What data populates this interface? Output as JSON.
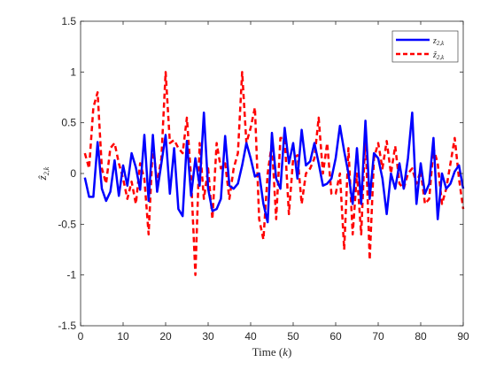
{
  "chart_data": {
    "type": "line",
    "xlabel": "Time (k)",
    "ylabel": "ẑ2,k",
    "xlim": [
      0,
      90
    ],
    "ylim": [
      -1.5,
      1.5
    ],
    "xticks": [
      0,
      10,
      20,
      30,
      40,
      50,
      60,
      70,
      80,
      90
    ],
    "yticks": [
      -1.5,
      -1,
      -0.5,
      0,
      0.5,
      1,
      1.5
    ],
    "xtick_labels": [
      "0",
      "10",
      "20",
      "30",
      "40",
      "50",
      "60",
      "70",
      "80",
      "90"
    ],
    "ytick_labels": [
      "-1.5",
      "-1",
      "-0.5",
      "0",
      "0.5",
      "1",
      "1.5"
    ],
    "legend_position": "top-right",
    "grid": false,
    "x": [
      1,
      2,
      3,
      4,
      5,
      6,
      7,
      8,
      9,
      10,
      11,
      12,
      13,
      14,
      15,
      16,
      17,
      18,
      19,
      20,
      21,
      22,
      23,
      24,
      25,
      26,
      27,
      28,
      29,
      30,
      31,
      32,
      33,
      34,
      35,
      36,
      37,
      38,
      39,
      40,
      41,
      42,
      43,
      44,
      45,
      46,
      47,
      48,
      49,
      50,
      51,
      52,
      53,
      54,
      55,
      56,
      57,
      58,
      59,
      60,
      61,
      62,
      63,
      64,
      65,
      66,
      67,
      68,
      69,
      70,
      71,
      72,
      73,
      74,
      75,
      76,
      77,
      78,
      79,
      80,
      81,
      82,
      83,
      84,
      85,
      86,
      87,
      88,
      89,
      90
    ],
    "series": [
      {
        "name": "z2,k",
        "color": "#0000FF",
        "style": "solid",
        "values": [
          -0.04,
          -0.23,
          -0.23,
          0.31,
          -0.15,
          -0.27,
          -0.18,
          0.13,
          -0.22,
          0.08,
          -0.12,
          0.2,
          0.06,
          -0.16,
          0.38,
          -0.27,
          0.38,
          -0.18,
          0.1,
          0.38,
          -0.2,
          0.25,
          -0.35,
          -0.42,
          0.32,
          -0.22,
          0.15,
          -0.12,
          0.6,
          -0.15,
          -0.37,
          -0.35,
          -0.25,
          0.37,
          -0.12,
          -0.15,
          -0.1,
          0.08,
          0.3,
          0.15,
          -0.03,
          0.0,
          -0.3,
          -0.48,
          0.4,
          -0.05,
          -0.15,
          0.45,
          0.1,
          0.3,
          -0.05,
          0.43,
          0.08,
          0.12,
          0.3,
          0.1,
          -0.12,
          -0.1,
          -0.05,
          0.15,
          0.47,
          0.22,
          0.0,
          -0.3,
          0.25,
          -0.3,
          0.52,
          -0.25,
          0.2,
          0.15,
          -0.05,
          -0.4,
          0.0,
          -0.15,
          0.1,
          -0.15,
          0.15,
          0.6,
          -0.3,
          0.1,
          -0.2,
          -0.1,
          0.35,
          -0.45,
          0.0,
          -0.15,
          -0.1,
          0.02,
          0.08,
          -0.15
        ]
      },
      {
        "name": "ẑ2,k",
        "color": "#FF0000",
        "style": "dashed",
        "values": [
          0.2,
          0.05,
          0.65,
          0.8,
          0.05,
          -0.1,
          0.25,
          0.3,
          0.1,
          -0.05,
          -0.25,
          -0.08,
          -0.3,
          0.1,
          -0.05,
          -0.6,
          0.3,
          -0.1,
          0.15,
          1.0,
          0.3,
          0.33,
          0.25,
          0.2,
          0.55,
          -0.05,
          -1.0,
          0.3,
          -0.25,
          0.05,
          -0.45,
          0.3,
          0.05,
          0.1,
          -0.25,
          0.05,
          0.2,
          1.0,
          0.3,
          0.45,
          0.65,
          -0.45,
          -0.65,
          0.0,
          0.3,
          -0.45,
          0.35,
          0.35,
          -0.4,
          0.15,
          0.18,
          -0.3,
          0.0,
          0.05,
          0.15,
          0.55,
          0.0,
          0.3,
          -0.2,
          -0.2,
          0.0,
          -0.75,
          0.25,
          -0.6,
          0.0,
          -0.6,
          0.4,
          -0.85,
          0.15,
          0.3,
          0.05,
          0.32,
          0.0,
          0.27,
          -0.1,
          -0.15,
          0.0,
          0.05,
          -0.1,
          0.03,
          -0.3,
          -0.25,
          0.25,
          0.1,
          -0.3,
          -0.15,
          0.1,
          0.35,
          -0.05,
          -0.35
        ]
      }
    ]
  },
  "legend": {
    "series1": {
      "main": "z",
      "sub": "2,k"
    },
    "series2": {
      "main": "ẑ",
      "sub": "2,k"
    }
  },
  "axis_title_x": {
    "main": "Time (",
    "var": "k",
    "close": ")"
  },
  "axis_title_y": {
    "main": "ẑ",
    "sub": "2,k"
  }
}
